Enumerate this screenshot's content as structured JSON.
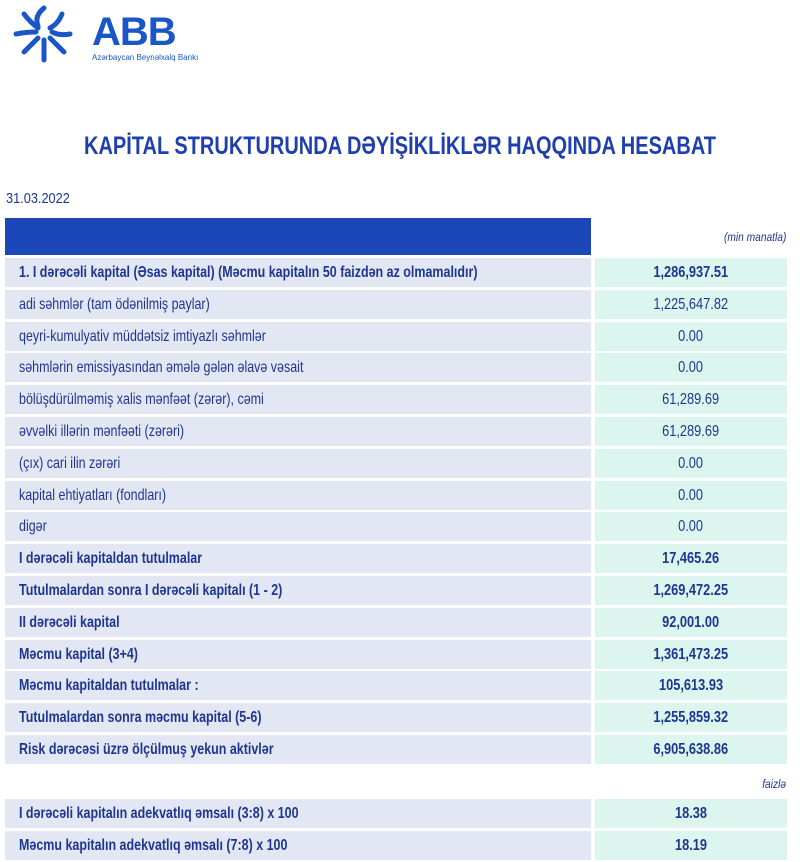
{
  "logo": {
    "name": "ABB",
    "subtitle": "Azərbaycan Beynəlxalq Bankı",
    "color": "#1a56c8"
  },
  "title": "KAPİTAL STRUKTURUNDA DƏYİŞİKLİKLƏR HAQQINDA HESABAT",
  "date": "31.03.2022",
  "unit_main": "(min manatla)",
  "unit_ratio": "faizlə",
  "colors": {
    "header": "#1b47b9",
    "label_bg": "#e3e7f4",
    "value_bg": "#dcf5ef",
    "text": "#1d3791"
  },
  "rows": [
    {
      "label": "1. I dərəcəli kapital (Əsas kapital) (Məcmu kapitalın 50 faizdən  az olmamalıdır)",
      "value": "1,286,937.51",
      "bold": true
    },
    {
      "label": "adi səhmlər (tam ödənilmiş paylar)",
      "value": "1,225,647.82",
      "bold": false
    },
    {
      "label": "qeyri-kumulyativ müddətsiz imtiyazlı səhmlər",
      "value": "0.00",
      "bold": false
    },
    {
      "label": "səhmlərin emissiyasından əmələ gələn  əlavə vəsait",
      "value": "0.00",
      "bold": false
    },
    {
      "label": "bölüşdürülməmiş xalis mənfəət (zərər), cəmi",
      "value": "61,289.69",
      "bold": false
    },
    {
      "label": "əvvəlki illərin mənfəəti (zərəri)",
      "value": "61,289.69",
      "bold": false
    },
    {
      "label": "(çıx) cari ilin zərəri",
      "value": "0.00",
      "bold": false
    },
    {
      "label": "kapital ehtiyatları (fondları)",
      "value": "0.00",
      "bold": false
    },
    {
      "label": "digər",
      "value": "0.00",
      "bold": false
    },
    {
      "label": "I dərəcəli kapitaldan  tutulmalar",
      "value": "17,465.26",
      "bold": true
    },
    {
      "label": "Tutulmalardan  sonra I dərəcəli kapitalı (1 - 2)",
      "value": "1,269,472.25",
      "bold": true
    },
    {
      "label": "II dərəcəli  kapital",
      "value": "92,001.00",
      "bold": true
    },
    {
      "label": "Məcmu kapital (3+4)",
      "value": "1,361,473.25",
      "bold": true
    },
    {
      "label": "Məcmu kapitaldan tutulmalar :",
      "value": "105,613.93",
      "bold": true
    },
    {
      "label": "Tutulmalardan sonra məcmu kapital (5-6)",
      "value": "1,255,859.32",
      "bold": true
    },
    {
      "label": "Risk dərəcəsi üzrə ölçülmuş  yekun aktivlər",
      "value": "6,905,638.86",
      "bold": true
    }
  ],
  "ratios": [
    {
      "label": "I dərəcəli  kapitalın  adekvatlıq əmsalı (3:8) x 100",
      "value": "18.38"
    },
    {
      "label": "Məcmu kapitalın  adekvatlıq  əmsalı (7:8) x 100",
      "value": "18.19"
    }
  ]
}
